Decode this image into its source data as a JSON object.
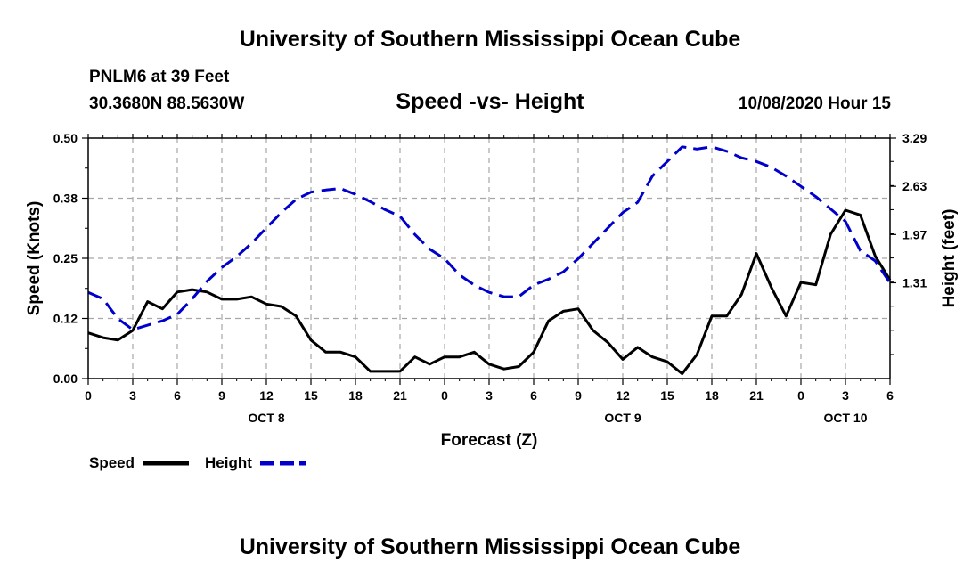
{
  "header": {
    "top_title": "University of Southern Mississippi Ocean Cube",
    "station": "PNLM6 at 39 Feet",
    "coords": "30.3680N 88.5630W",
    "timestamp": "10/08/2020 Hour 15",
    "bottom_title": "University of Southern Mississippi Ocean Cube"
  },
  "colors": {
    "speed": "#000000",
    "height": "#0000cc",
    "grid": "#a6a6a6"
  },
  "chart_data": {
    "type": "line",
    "title": "Speed -vs- Height",
    "xlabel": "Forecast (Z)",
    "ylabel": "Speed (Knots)",
    "y2label": "Height (feet)",
    "xlim": [
      0,
      54
    ],
    "ylim": [
      0,
      0.5
    ],
    "y2lim": [
      0,
      3.29
    ],
    "x_ticks": [
      0,
      3,
      6,
      9,
      12,
      15,
      18,
      21,
      24,
      27,
      30,
      33,
      36,
      39,
      42,
      45,
      48,
      51,
      54
    ],
    "x_tick_labels": [
      "0",
      "3",
      "6",
      "9",
      "12",
      "15",
      "18",
      "21",
      "0",
      "3",
      "6",
      "9",
      "12",
      "15",
      "18",
      "21",
      "0",
      "3",
      "6"
    ],
    "date_labels": [
      {
        "x": 12,
        "label": "OCT 8"
      },
      {
        "x": 36,
        "label": "OCT 9"
      },
      {
        "x": 51,
        "label": "OCT 10"
      }
    ],
    "y_ticks": [
      0,
      0.125,
      0.25,
      0.375,
      0.5
    ],
    "y_tick_labels": [
      "0.00",
      "0.12",
      "0.25",
      "0.38",
      "0.50"
    ],
    "y2_ticks": [
      1.31,
      1.97,
      2.63,
      3.29
    ],
    "y2_tick_labels": [
      "1.31",
      "1.97",
      "2.63",
      "3.29"
    ],
    "legend": [
      {
        "name": "Speed",
        "style": "solid"
      },
      {
        "name": "Height",
        "style": "dashed"
      }
    ],
    "series": [
      {
        "name": "Speed",
        "axis": "left",
        "x": [
          0,
          1,
          2,
          3,
          4,
          5,
          6,
          7,
          8,
          9,
          10,
          11,
          12,
          13,
          14,
          15,
          16,
          17,
          18,
          19,
          20,
          21,
          22,
          23,
          24,
          25,
          26,
          27,
          28,
          29,
          30,
          31,
          32,
          33,
          34,
          35,
          36,
          37,
          38,
          39,
          40,
          41,
          42,
          43,
          44,
          45,
          46,
          47,
          48,
          49,
          50,
          51,
          52,
          53,
          54
        ],
        "values": [
          0.095,
          0.085,
          0.08,
          0.1,
          0.16,
          0.145,
          0.18,
          0.185,
          0.18,
          0.165,
          0.165,
          0.17,
          0.155,
          0.15,
          0.13,
          0.08,
          0.055,
          0.055,
          0.045,
          0.015,
          0.015,
          0.015,
          0.045,
          0.03,
          0.045,
          0.045,
          0.055,
          0.03,
          0.02,
          0.025,
          0.055,
          0.12,
          0.14,
          0.145,
          0.1,
          0.075,
          0.04,
          0.065,
          0.045,
          0.035,
          0.01,
          0.05,
          0.13,
          0.13,
          0.175,
          0.26,
          0.19,
          0.13,
          0.2,
          0.195,
          0.3,
          0.35,
          0.34,
          0.255,
          0.205
        ]
      },
      {
        "name": "Height",
        "axis": "right",
        "x": [
          0,
          1,
          2,
          3,
          4,
          5,
          6,
          7,
          8,
          9,
          10,
          11,
          12,
          13,
          14,
          15,
          16,
          17,
          18,
          19,
          20,
          21,
          22,
          23,
          24,
          25,
          26,
          27,
          28,
          29,
          30,
          31,
          32,
          33,
          34,
          35,
          36,
          37,
          38,
          39,
          40,
          41,
          42,
          43,
          44,
          45,
          46,
          47,
          48,
          49,
          50,
          51,
          52,
          53,
          54
        ],
        "values": [
          1.18,
          1.09,
          0.82,
          0.67,
          0.73,
          0.79,
          0.88,
          1.09,
          1.33,
          1.52,
          1.67,
          1.85,
          2.06,
          2.27,
          2.45,
          2.55,
          2.58,
          2.6,
          2.52,
          2.42,
          2.31,
          2.22,
          1.97,
          1.77,
          1.64,
          1.42,
          1.28,
          1.18,
          1.12,
          1.12,
          1.28,
          1.36,
          1.46,
          1.64,
          1.85,
          2.06,
          2.27,
          2.41,
          2.77,
          2.97,
          3.17,
          3.14,
          3.17,
          3.11,
          3.02,
          2.97,
          2.89,
          2.77,
          2.63,
          2.49,
          2.32,
          2.15,
          1.75,
          1.61,
          1.31
        ]
      }
    ]
  }
}
